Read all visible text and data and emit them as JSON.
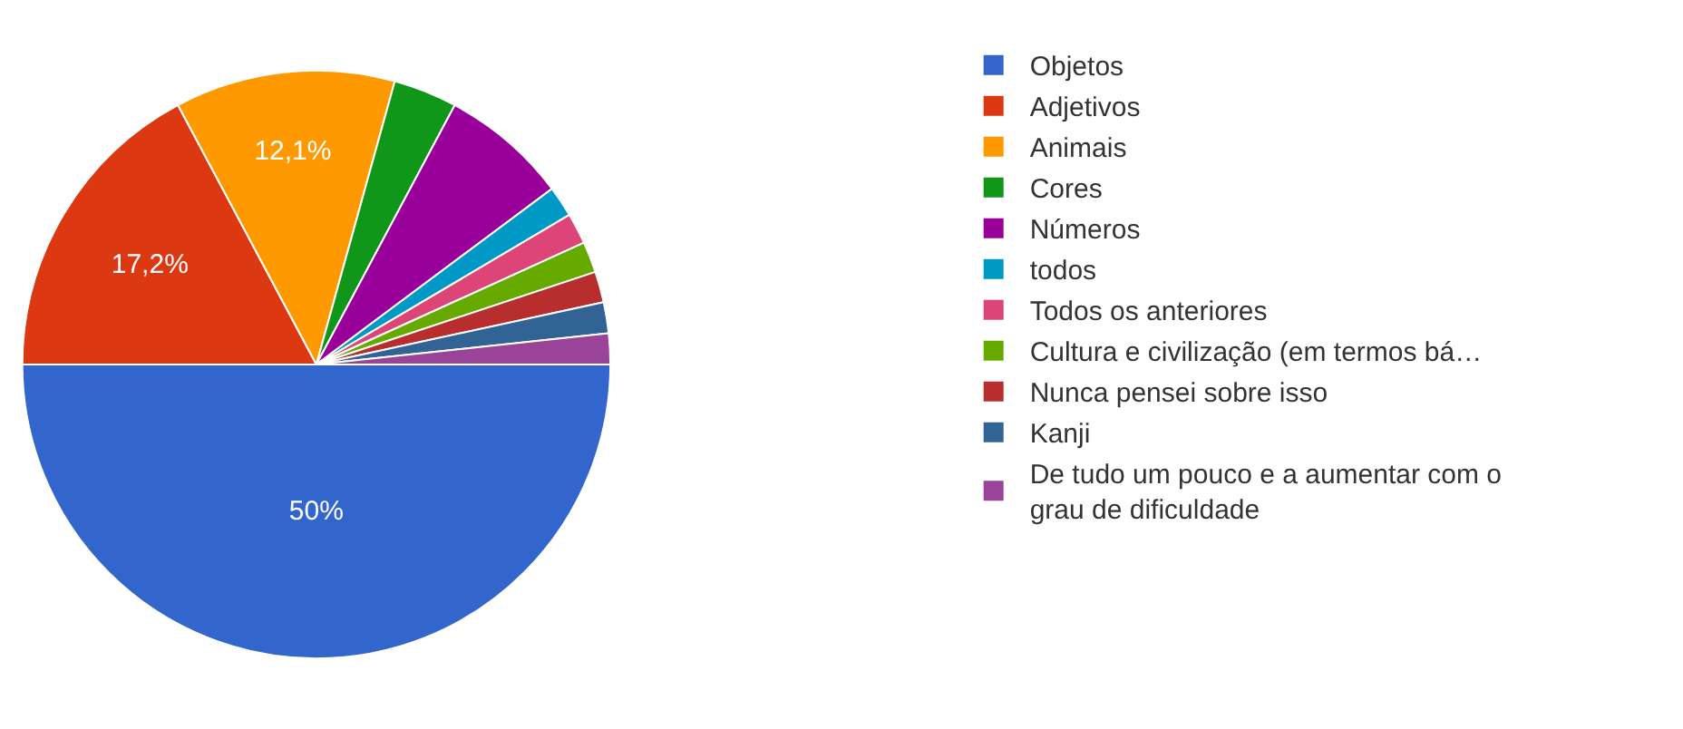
{
  "chart_data": {
    "type": "pie",
    "categories": [
      "Objetos",
      "Adjetivos",
      "Animais",
      "Cores",
      "Números",
      "todos",
      "Todos os anteriores",
      "Cultura e civilização (em termos bá…",
      "Nunca pensei sobre isso",
      "Kanji",
      "De tudo um pouco e a aumentar com o grau de dificuldade"
    ],
    "values": [
      50,
      17.2,
      12.1,
      3.5,
      7.0,
      1.7,
      1.7,
      1.7,
      1.7,
      1.7,
      1.7
    ],
    "colors": [
      "#3366cc",
      "#dc3912",
      "#ff9900",
      "#109618",
      "#990099",
      "#0099c6",
      "#dd4477",
      "#66aa00",
      "#b82e2e",
      "#316395",
      "#994499"
    ],
    "value_labels": [
      "50%",
      "17,2%",
      "12,1%",
      null,
      null,
      null,
      null,
      null,
      null,
      null,
      null
    ],
    "legend": "right"
  }
}
